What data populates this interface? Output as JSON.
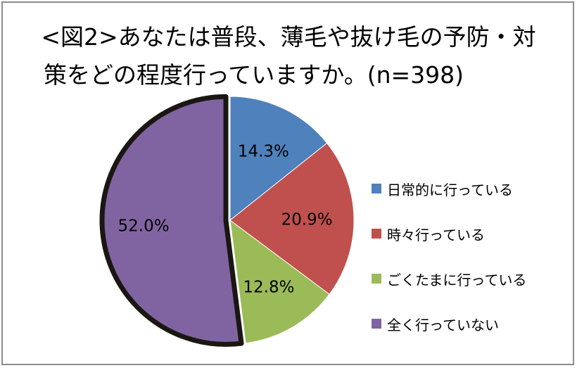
{
  "chart_data": {
    "type": "pie",
    "title_line1": "<図2>あなたは普段、薄毛や抜け毛の予防・対",
    "title_line2": "策をどの程度行っていますか。(n=398)",
    "slices": [
      {
        "name": "日常的に行っている",
        "value": 14.3,
        "label": "14.3%",
        "color": "#4f81bd"
      },
      {
        "name": "時々行っている",
        "value": 20.9,
        "label": "20.9%",
        "color": "#c0504d"
      },
      {
        "name": "ごくたまに行っている",
        "value": 12.8,
        "label": "12.8%",
        "color": "#9bbb59"
      },
      {
        "name": "全く行っていない",
        "value": 52.0,
        "label": "52.0%",
        "color": "#8064a2",
        "highlighted": true
      }
    ],
    "legend_position": "right"
  }
}
